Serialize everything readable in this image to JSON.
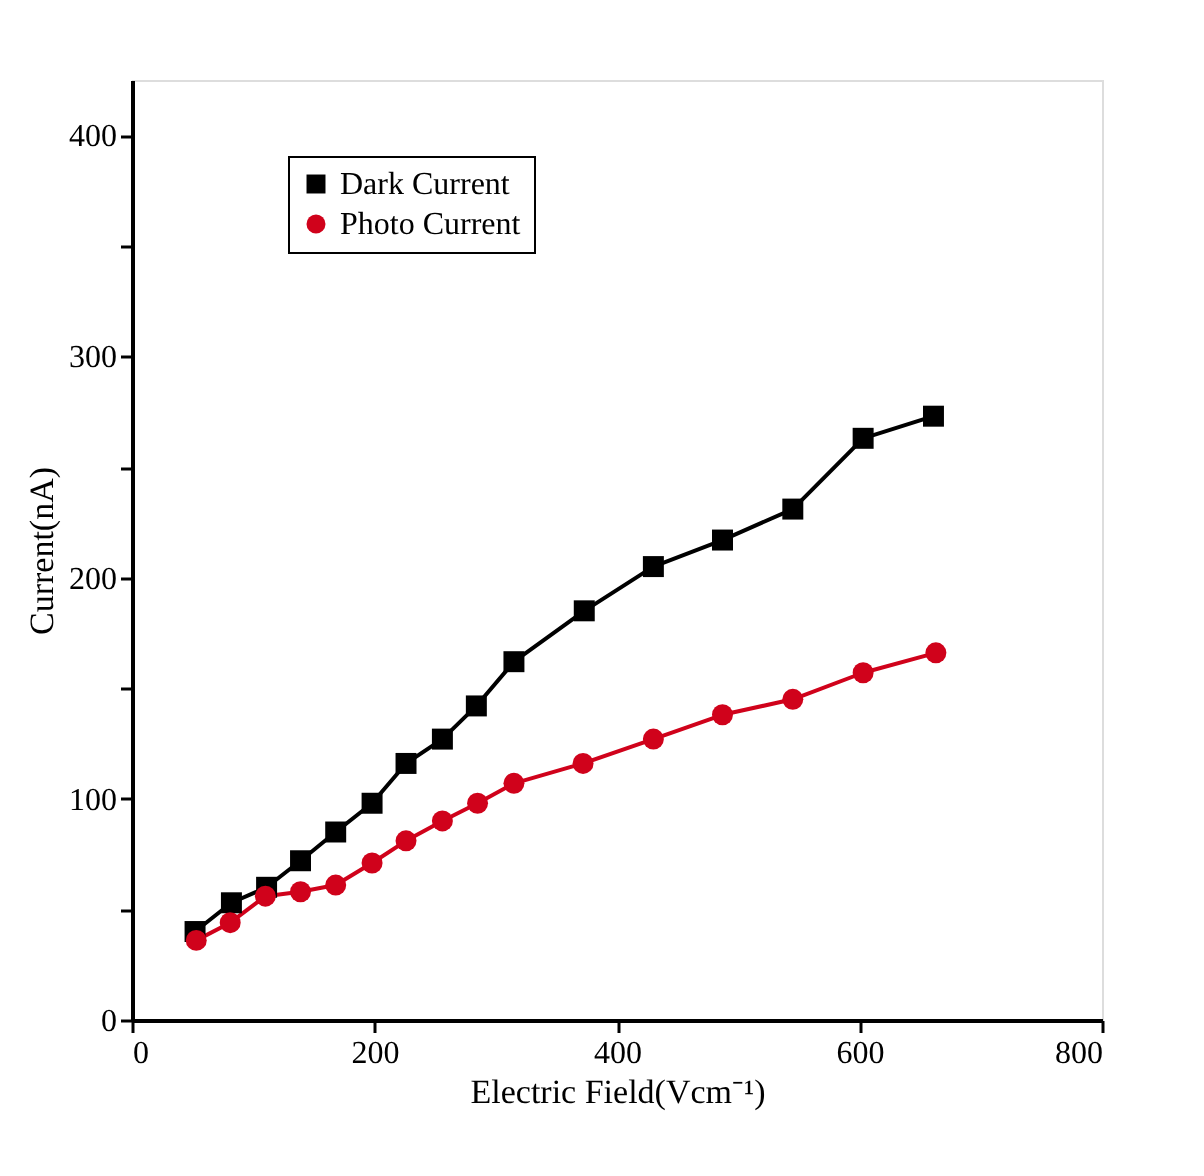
{
  "chart_data": {
    "type": "line",
    "xlabel": "Electric Field(Vcm⁻¹)",
    "ylabel": "Current(nA)",
    "xlim": [
      0,
      800
    ],
    "xticks": [
      0,
      200,
      400,
      600,
      800
    ],
    "ylim": [
      0,
      425
    ],
    "yticks": [
      0,
      {
        "value": 50,
        "label": null
      },
      100,
      {
        "value": 150,
        "label": null
      },
      200,
      {
        "value": 250,
        "label": null
      },
      300,
      {
        "value": 350,
        "label": null
      },
      400
    ],
    "grid": false,
    "legend": "top left",
    "line_style": "solid",
    "series": [
      {
        "name": "Dark Current",
        "color": "#000000",
        "marker": "square",
        "x": [
          52,
          82,
          111,
          139,
          168,
          198,
          226,
          256,
          284,
          315,
          373,
          430,
          487,
          545,
          603,
          661
        ],
        "values": [
          40,
          53,
          60,
          72,
          85,
          98,
          116,
          127,
          142,
          162,
          185,
          205,
          217,
          231,
          263,
          273
        ]
      },
      {
        "name": "Photo Current",
        "color": "#d0021b",
        "marker": "circle",
        "x": [
          53,
          81,
          110,
          139,
          168,
          198,
          226,
          256,
          285,
          315,
          372,
          430,
          487,
          545,
          603,
          663
        ],
        "values": [
          36,
          44,
          56,
          58,
          61,
          71,
          81,
          90,
          98,
          107,
          116,
          127,
          138,
          145,
          157,
          166
        ]
      }
    ]
  }
}
